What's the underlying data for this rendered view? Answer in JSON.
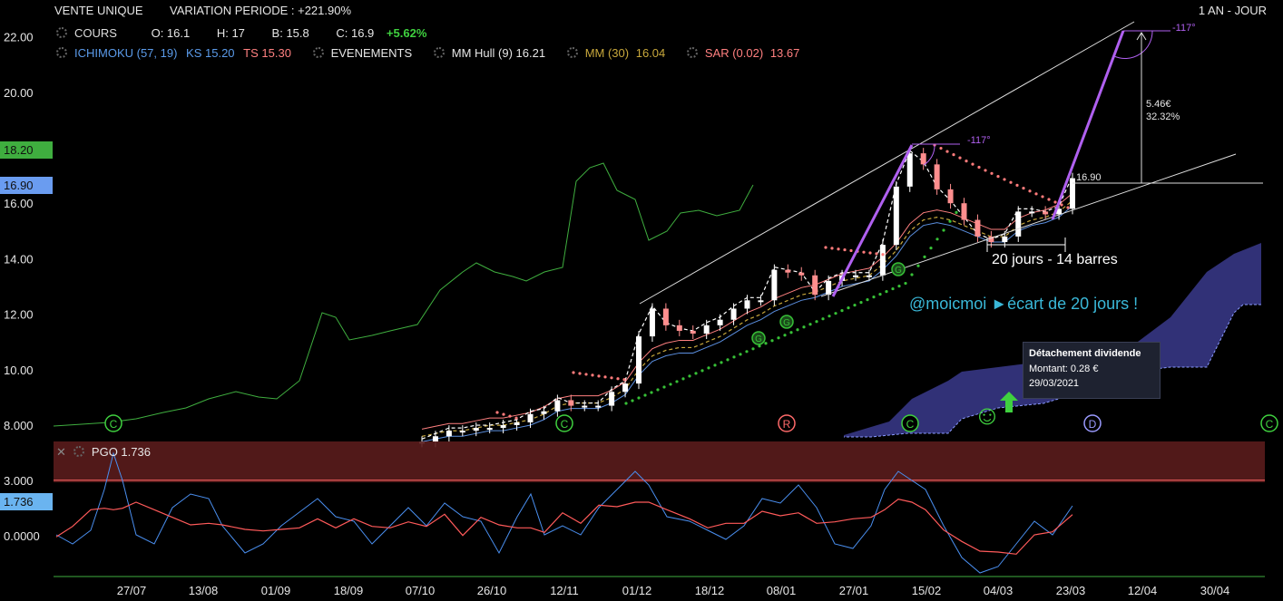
{
  "header": {
    "instrument": "VENTE UNIQUE",
    "variation": "VARIATION PERIODE : +221.90%",
    "period": "1 AN - JOUR",
    "row1": {
      "cours_label": "COURS",
      "o": "O: 16.1",
      "h": "H: 17",
      "b": "B: 15.8",
      "c": "C: 16.9",
      "pct": "+5.62%"
    },
    "row2": {
      "ichimoku": "ICHIMOKU (57, 19)",
      "ks": "KS 15.20",
      "ts": "TS 15.30",
      "evenements": "EVENEMENTS",
      "hull": "MM Hull (9) 16.21",
      "mm_label": "MM (30)",
      "mm_value": "16.04",
      "sar_label": "SAR (0.02)",
      "sar_value": "13.67"
    }
  },
  "colors": {
    "background": "#000000",
    "green_line": "#3fae3f",
    "candle_up": "#ffffff",
    "candle_down": "#ff8e8e",
    "ichimoku_cloud": "#3a3a8c",
    "kijun": "#ff8080",
    "tenkan": "#5b8fe0",
    "sar": "#ff7b7b",
    "mm30": "#c8a83c",
    "signal_dots": "#37c037",
    "violet": "#b060f0",
    "pgo_blue": "#4a8ff0",
    "pgo_red": "#ff5a5a",
    "annotation_cyan": "#3ab8d8"
  },
  "price_tags": {
    "green": "18.20",
    "blue": "16.90"
  },
  "annotations": {
    "angle_top": "-117°",
    "angle_mid": "-117°",
    "delta_value": "5.46€",
    "delta_pct": "32.32%",
    "last_price": "16.90",
    "bars_note": "20 jours - 14 barres",
    "ecart_note": "@moicmoi ►écart de 20 jours !",
    "smiley": "☺"
  },
  "tooltip": {
    "title": "Détachement dividende",
    "amount": "Montant: 0.28 €",
    "date": "29/03/2021"
  },
  "events": [
    {
      "label": "C",
      "date": "20/07"
    },
    {
      "label": "C",
      "date": "10/11"
    },
    {
      "label": "R",
      "date": "05/01"
    },
    {
      "label": "C",
      "date": "12/02"
    },
    {
      "label": "D",
      "date": "29/03"
    },
    {
      "label": "C",
      "date": "08/05"
    }
  ],
  "pgo_panel": {
    "title": "PGO 1.736",
    "current": "1.736",
    "upper_level": 3.0,
    "zero_level": 0.0,
    "tick_labels": [
      "3.000",
      "0.0000"
    ]
  },
  "chart_data": {
    "type": "line",
    "title": "",
    "xlabel": "",
    "ylabel": "",
    "ylim": [
      7.4,
      22.6
    ],
    "y_ticks": [
      "22.00",
      "20.00",
      "16.00",
      "14.00",
      "12.00",
      "10.00",
      "8.000"
    ],
    "x_tick_labels": [
      "27/07",
      "13/08",
      "01/09",
      "18/09",
      "07/10",
      "26/10",
      "12/11",
      "01/12",
      "18/12",
      "08/01",
      "27/01",
      "15/02",
      "04/03",
      "23/03",
      "12/04",
      "30/04"
    ],
    "grid": false,
    "legend": "top-left",
    "series": [
      {
        "name": "COURS",
        "values": [
          7.4,
          7.6,
          7.8,
          7.8,
          7.9,
          7.9,
          8.0,
          8.1,
          8.4,
          8.5,
          8.9,
          8.7,
          8.7,
          8.7,
          9.2,
          9.5,
          11.2,
          12.2,
          11.6,
          11.4,
          11.3,
          11.6,
          11.8,
          12.2,
          12.5,
          12.5,
          13.6,
          13.5,
          13.4,
          12.7,
          13.2,
          13.4,
          13.4,
          13.4,
          14.5,
          16.6,
          17.8,
          17.4,
          16.5,
          16.0,
          15.4,
          14.8,
          14.6,
          14.8,
          15.7,
          15.7,
          15.6,
          15.8,
          16.9
        ]
      },
      {
        "name": "ICHIMOKU (57, 19)",
        "values": [
          7.4,
          7.5,
          7.6,
          7.6,
          7.7,
          7.8,
          7.8,
          7.9,
          8.0,
          8.2,
          8.5,
          8.6,
          8.6,
          8.6,
          8.8,
          9.1,
          9.8,
          10.3,
          10.5,
          10.6,
          10.6,
          10.8,
          11.0,
          11.3,
          11.6,
          11.8,
          12.1,
          12.3,
          12.5,
          12.6,
          12.8,
          13.0,
          13.1,
          13.2,
          13.6,
          14.1,
          14.8,
          15.2,
          15.3,
          15.2,
          15.0,
          14.8,
          14.6,
          14.6,
          15.0,
          15.2,
          15.3,
          15.5,
          15.9
        ]
      }
    ]
  }
}
